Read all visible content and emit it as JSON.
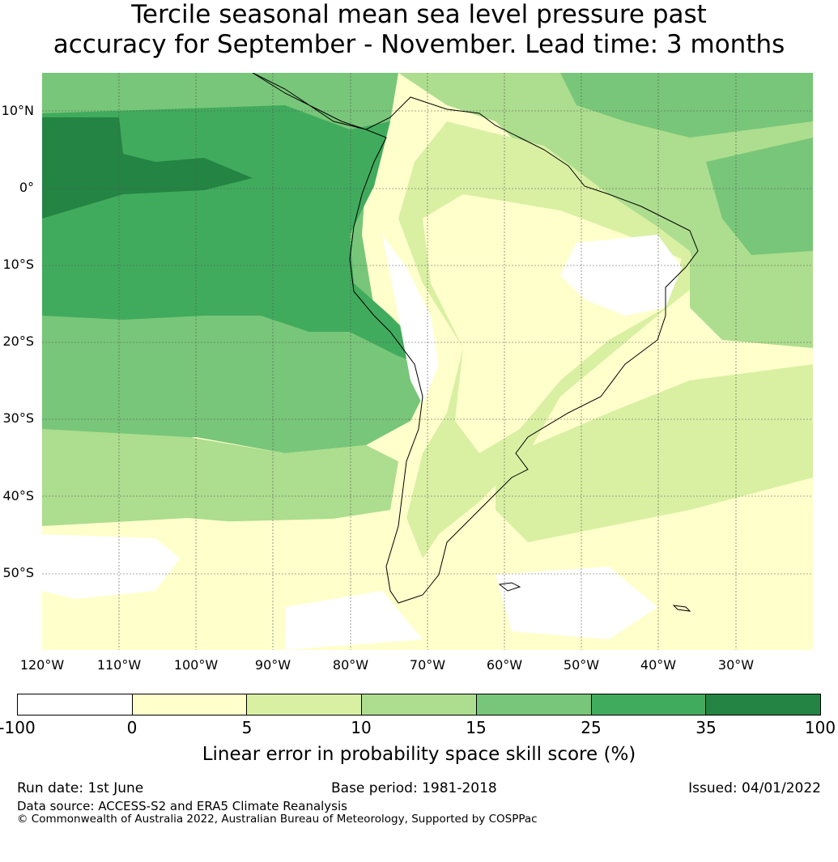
{
  "title_line1": "Tercile seasonal mean sea level pressure past",
  "title_line2": "accuracy for September - November. Lead time: 3 months",
  "lat_labels": [
    "10°N",
    "0°",
    "10°S",
    "20°S",
    "30°S",
    "40°S",
    "50°S"
  ],
  "lon_labels": [
    "120°W",
    "110°W",
    "100°W",
    "90°W",
    "80°W",
    "70°W",
    "60°W",
    "50°W",
    "40°W",
    "30°W"
  ],
  "colorbar": {
    "ticks": [
      "-100",
      "0",
      "5",
      "10",
      "15",
      "25",
      "35",
      "100"
    ],
    "colors": [
      "#ffffff",
      "#ffffcc",
      "#d9f0a3",
      "#addd8e",
      "#78c679",
      "#41ab5d",
      "#238443"
    ],
    "label": "Linear error in probability space skill score (%)"
  },
  "footer": {
    "run_date": "Run date: 1st June",
    "base_period": "Base period: 1981-2018",
    "issued": "Issued: 04/01/2022",
    "data_source": "Data source: ACCESS-S2 and ERA5 Climate Reanalysis",
    "copyright": "© Commonwealth of Australia 2022, Australian Bureau of Meteorology, Supported by COSPPac"
  }
}
